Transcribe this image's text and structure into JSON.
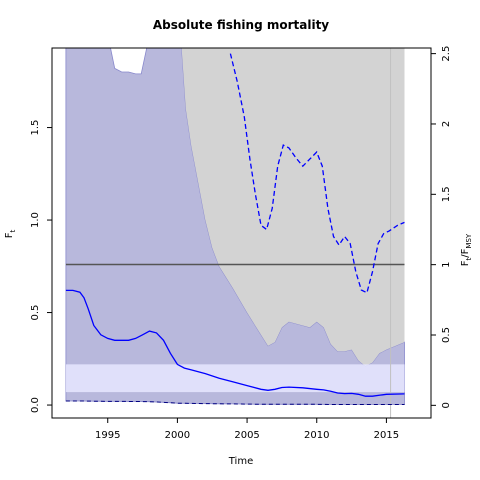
{
  "chart_data": {
    "type": "line",
    "title": "Absolute fishing mortality",
    "xlabel": "Time",
    "ylabel_main": "F",
    "ylabel_sub": "t",
    "ylabel_right_main": "F",
    "ylabel_right_sub": "t",
    "ylabel_right_slash": "/F",
    "ylabel_right_sub2": "MSY",
    "xlim": [
      1991.0,
      2018.2
    ],
    "ylim": [
      -0.07,
      1.93
    ],
    "ylim_right": [
      -0.09,
      2.54
    ],
    "x_ticks": [
      1995,
      2000,
      2005,
      2010,
      2015
    ],
    "x_tick_labels": [
      "1995",
      "2000",
      "2005",
      "2010",
      "2015"
    ],
    "y_ticks": [
      0.0,
      0.5,
      1.0,
      1.5
    ],
    "y_tick_labels": [
      "0.0",
      "0.5",
      "1.0",
      "1.5"
    ],
    "y_right_ticks": [
      0,
      0.5,
      1,
      1.5,
      2,
      2.5
    ],
    "y_right_tick_labels": [
      "0",
      "0.5",
      "1",
      "1.5",
      "2",
      "2.5"
    ],
    "fmsy_reference": 0.76,
    "fmsy_ci": [
      0.07,
      0.22
    ],
    "vertical_line_x": 2015.3,
    "colors": {
      "ft_line": "#0000ff",
      "ft_band": "#b8b8dc",
      "ratio_band": "#d3d3d3",
      "fmsy_line": "#555555",
      "fmsy_band": "#e6e6ff",
      "vline": "#c0c0c0"
    },
    "series": [
      {
        "type": "ft_median",
        "x": [
          1992.0,
          1992.5,
          1993.0,
          1993.3,
          1993.6,
          1994.0,
          1994.5,
          1995.0,
          1995.5,
          1996.0,
          1996.5,
          1997.0,
          1997.5,
          1998.0,
          1998.5,
          1999.0,
          1999.5,
          2000.0,
          2000.5,
          2001.0,
          2002.0,
          2003.0,
          2004.0,
          2005.0,
          2006.0,
          2006.5,
          2007.0,
          2007.5,
          2008.0,
          2009.0,
          2010.0,
          2010.5,
          2011.0,
          2011.5,
          2012.0,
          2012.5,
          2013.0,
          2013.5,
          2014.0,
          2015.0,
          2016.3
        ],
        "y": [
          0.62,
          0.62,
          0.61,
          0.58,
          0.52,
          0.43,
          0.38,
          0.36,
          0.35,
          0.35,
          0.35,
          0.36,
          0.38,
          0.4,
          0.39,
          0.35,
          0.28,
          0.22,
          0.2,
          0.19,
          0.17,
          0.145,
          0.125,
          0.105,
          0.085,
          0.08,
          0.085,
          0.095,
          0.097,
          0.093,
          0.085,
          0.082,
          0.075,
          0.065,
          0.062,
          0.063,
          0.058,
          0.048,
          0.048,
          0.058,
          0.06
        ]
      },
      {
        "type": "ft_upper",
        "x": [
          1992.0,
          1995.2,
          1995.5,
          1996.0,
          1996.5,
          1997.0,
          1997.4,
          1997.8,
          2000.3,
          2000.6,
          2001.0,
          2001.5,
          2002.0,
          2002.5,
          2003.0,
          2004.0,
          2005.0,
          2006.0,
          2006.5,
          2007.0,
          2007.5,
          2008.0,
          2009.0,
          2009.5,
          2010.0,
          2010.5,
          2011.0,
          2011.5,
          2012.0,
          2012.5,
          2013.0,
          2013.5,
          2014.0,
          2014.5,
          2015.0,
          2016.3
        ],
        "y": [
          1.93,
          1.93,
          1.82,
          1.8,
          1.8,
          1.79,
          1.79,
          1.93,
          1.93,
          1.6,
          1.4,
          1.2,
          1.0,
          0.85,
          0.75,
          0.63,
          0.5,
          0.38,
          0.32,
          0.34,
          0.42,
          0.45,
          0.43,
          0.42,
          0.45,
          0.42,
          0.33,
          0.29,
          0.29,
          0.3,
          0.24,
          0.21,
          0.23,
          0.28,
          0.3,
          0.34
        ]
      },
      {
        "type": "ft_lower",
        "x": [
          1992.0,
          1993.0,
          1994.0,
          1995.0,
          1996.0,
          1997.0,
          1998.0,
          1999.0,
          2000.0,
          2001.0,
          2002.0,
          2003.0,
          2004.0,
          2005.0,
          2006.0,
          2007.0,
          2008.0,
          2009.0,
          2010.0,
          2011.0,
          2012.0,
          2013.0,
          2014.0,
          2015.0,
          2016.3
        ],
        "y": [
          0.022,
          0.022,
          0.021,
          0.02,
          0.02,
          0.019,
          0.018,
          0.015,
          0.01,
          0.009,
          0.008,
          0.007,
          0.006,
          0.005,
          0.004,
          0.004,
          0.004,
          0.004,
          0.004,
          0.003,
          0.003,
          0.003,
          0.003,
          0.003,
          0.003
        ]
      },
      {
        "type": "ratio_median",
        "x": [
          2003.8,
          2004.3,
          2004.8,
          2005.2,
          2005.6,
          2006.0,
          2006.4,
          2006.8,
          2007.2,
          2007.6,
          2008.0,
          2008.5,
          2009.0,
          2009.5,
          2010.0,
          2010.4,
          2010.8,
          2011.2,
          2011.6,
          2012.0,
          2012.4,
          2012.8,
          2013.2,
          2013.6,
          2014.0,
          2014.4,
          2014.8,
          2015.2,
          2015.8,
          2016.3
        ],
        "y": [
          2.5,
          2.3,
          2.05,
          1.75,
          1.5,
          1.28,
          1.25,
          1.4,
          1.7,
          1.85,
          1.83,
          1.76,
          1.7,
          1.75,
          1.8,
          1.7,
          1.4,
          1.2,
          1.14,
          1.2,
          1.15,
          0.95,
          0.82,
          0.8,
          0.95,
          1.15,
          1.22,
          1.24,
          1.28,
          1.3
        ]
      },
      {
        "type": "ratio_upper",
        "x": [
          2000.3,
          2016.3
        ],
        "y": [
          2.54,
          2.54
        ]
      }
    ]
  }
}
